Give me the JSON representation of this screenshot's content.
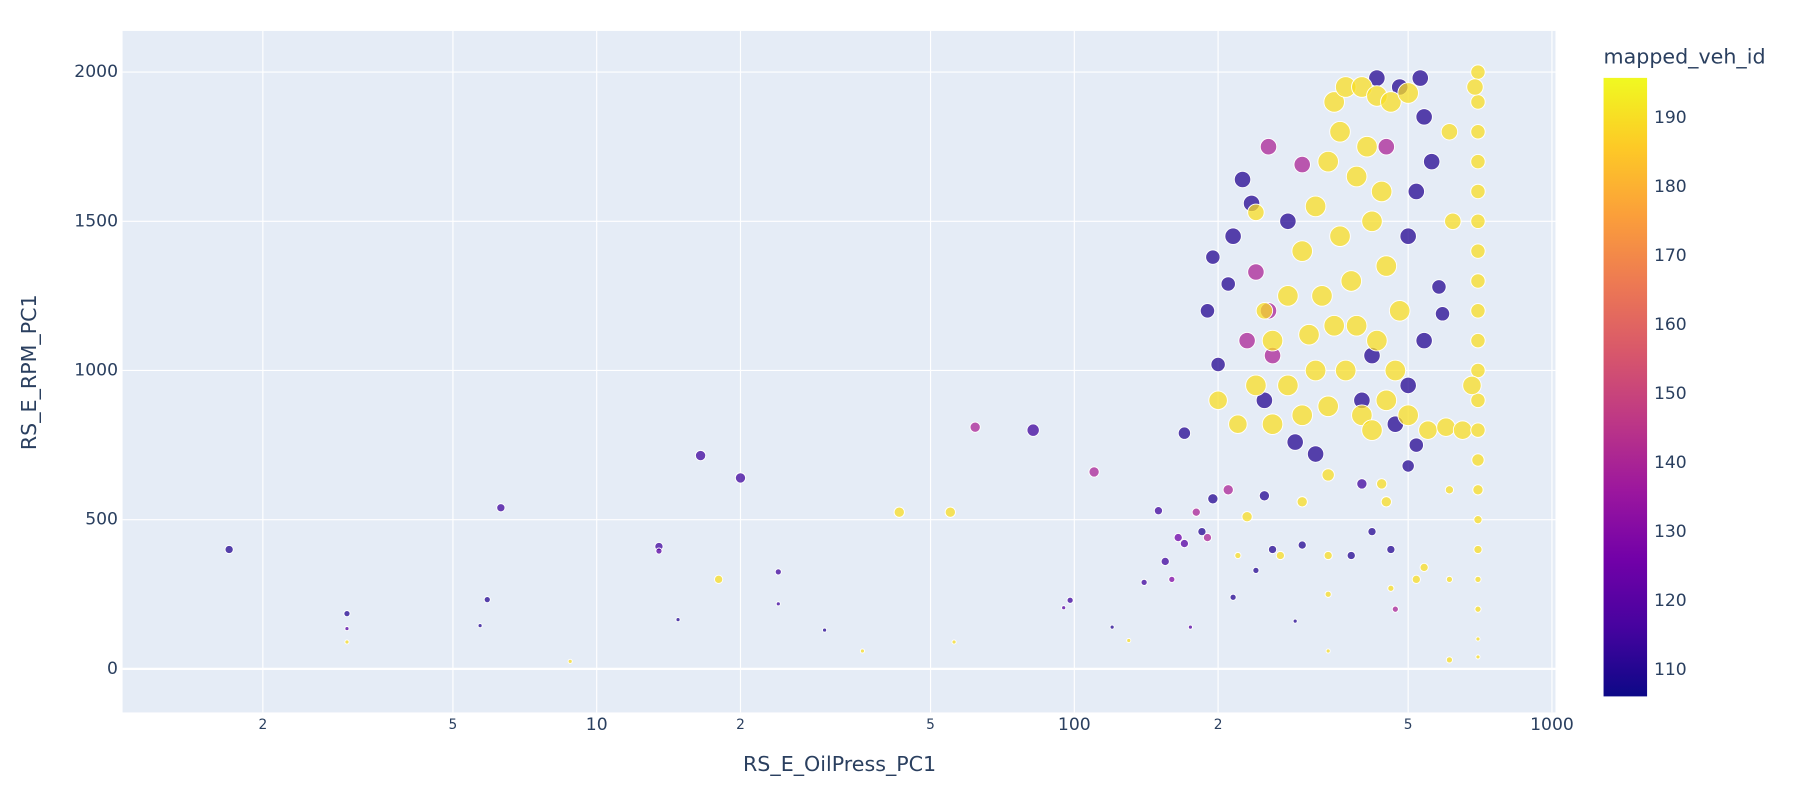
{
  "chart_data": {
    "type": "scatter",
    "x_label": "RS_E_OilPress_PC1",
    "y_label": "RS_E_RPM_PC1",
    "colorbar_title": "mapped_veh_id",
    "x_log": true,
    "grid": true,
    "xlim": [
      1.017,
      1017
    ],
    "ylim": [
      -146,
      2138
    ],
    "xticks": [
      2,
      5,
      10,
      {
        "value": 20,
        "label": "2"
      },
      {
        "value": 50,
        "label": "5"
      },
      100,
      {
        "value": 200,
        "label": "2"
      },
      {
        "value": 500,
        "label": "5"
      },
      1000
    ],
    "yticks": [
      0,
      500,
      1000,
      1500,
      2000
    ],
    "clim": [
      106.2,
      195.8
    ],
    "cticks": [
      110,
      120,
      130,
      140,
      150,
      160,
      170,
      180,
      190
    ],
    "colorscale": [
      "#0d0887",
      "#46039f",
      "#7201a8",
      "#9c179e",
      "#bd3786",
      "#d8576b",
      "#ed7953",
      "#fb9f3a",
      "#fdca26",
      "#f0f921"
    ],
    "points": [
      [
        1.7,
        400,
        4,
        110
      ],
      [
        3,
        185,
        3,
        110
      ],
      [
        3,
        135,
        2,
        120
      ],
      [
        3,
        90,
        2,
        190
      ],
      [
        5.7,
        145,
        2,
        110
      ],
      [
        5.9,
        232,
        3,
        110
      ],
      [
        6.3,
        540,
        4,
        115
      ],
      [
        8.8,
        25,
        2,
        190
      ],
      [
        13.5,
        410,
        4,
        115
      ],
      [
        13.5,
        395,
        3,
        120
      ],
      [
        14.8,
        165,
        2,
        110
      ],
      [
        16.5,
        715,
        5,
        115
      ],
      [
        18,
        300,
        4,
        190
      ],
      [
        20,
        640,
        5,
        115
      ],
      [
        24,
        325,
        3,
        115
      ],
      [
        24,
        218,
        2,
        115
      ],
      [
        30,
        130,
        2,
        110
      ],
      [
        36,
        60,
        2,
        190
      ],
      [
        43,
        525,
        5,
        190
      ],
      [
        55,
        525,
        5,
        190
      ],
      [
        56,
        90,
        2,
        190
      ],
      [
        62,
        810,
        5,
        140
      ],
      [
        82,
        800,
        6,
        115
      ],
      [
        95,
        205,
        2,
        120
      ],
      [
        98,
        230,
        3,
        115
      ],
      [
        110,
        660,
        5,
        140
      ],
      [
        120,
        140,
        2,
        110
      ],
      [
        130,
        95,
        2,
        190
      ],
      [
        140,
        290,
        3,
        115
      ],
      [
        150,
        530,
        4,
        115
      ],
      [
        155,
        360,
        4,
        115
      ],
      [
        160,
        300,
        3,
        130
      ],
      [
        165,
        440,
        4,
        125
      ],
      [
        170,
        420,
        4,
        120
      ],
      [
        175,
        140,
        2,
        120
      ],
      [
        180,
        525,
        4,
        140
      ],
      [
        185,
        460,
        4,
        110
      ],
      [
        190,
        440,
        4,
        140
      ],
      [
        195,
        570,
        5,
        110
      ],
      [
        210,
        600,
        5,
        140
      ],
      [
        215,
        240,
        3,
        110
      ],
      [
        220,
        380,
        3,
        190
      ],
      [
        230,
        510,
        5,
        190
      ],
      [
        240,
        330,
        3,
        110
      ],
      [
        250,
        580,
        5,
        110
      ],
      [
        260,
        400,
        4,
        110
      ],
      [
        270,
        380,
        4,
        190
      ],
      [
        290,
        160,
        2,
        110
      ],
      [
        300,
        560,
        5,
        190
      ],
      [
        300,
        415,
        4,
        110
      ],
      [
        340,
        650,
        6,
        190
      ],
      [
        340,
        380,
        4,
        190
      ],
      [
        340,
        250,
        3,
        190
      ],
      [
        340,
        60,
        2,
        190
      ],
      [
        380,
        380,
        4,
        110
      ],
      [
        400,
        620,
        5,
        115
      ],
      [
        420,
        460,
        4,
        110
      ],
      [
        440,
        620,
        5,
        190
      ],
      [
        450,
        560,
        5,
        190
      ],
      [
        460,
        400,
        4,
        110
      ],
      [
        460,
        270,
        3,
        190
      ],
      [
        470,
        200,
        3,
        140
      ],
      [
        520,
        300,
        4,
        190
      ],
      [
        540,
        340,
        4,
        190
      ],
      [
        610,
        30,
        3,
        190
      ],
      [
        610,
        300,
        3,
        190
      ],
      [
        610,
        600,
        4,
        190
      ],
      [
        170,
        790,
        6,
        110
      ],
      [
        190,
        1200,
        7,
        110
      ],
      [
        195,
        1380,
        7,
        110
      ],
      [
        200,
        1020,
        7,
        110
      ],
      [
        210,
        1290,
        7,
        110
      ],
      [
        215,
        1450,
        8,
        110
      ],
      [
        225,
        1640,
        8,
        110
      ],
      [
        235,
        1560,
        8,
        110
      ],
      [
        240,
        1330,
        8,
        140
      ],
      [
        255,
        1750,
        8,
        140
      ],
      [
        255,
        1200,
        8,
        140
      ],
      [
        280,
        1500,
        8,
        110
      ],
      [
        300,
        1690,
        8,
        140
      ],
      [
        250,
        900,
        8,
        110
      ],
      [
        230,
        1100,
        8,
        140
      ],
      [
        260,
        1050,
        8,
        140
      ],
      [
        290,
        760,
        8,
        110
      ],
      [
        320,
        720,
        8,
        110
      ],
      [
        500,
        1450,
        8,
        110
      ],
      [
        520,
        1600,
        8,
        110
      ],
      [
        540,
        1850,
        8,
        110
      ],
      [
        560,
        1700,
        8,
        110
      ],
      [
        580,
        1280,
        7,
        110
      ],
      [
        590,
        1190,
        7,
        110
      ],
      [
        540,
        1100,
        8,
        110
      ],
      [
        500,
        950,
        8,
        110
      ],
      [
        480,
        1950,
        8,
        110
      ],
      [
        470,
        820,
        8,
        110
      ],
      [
        520,
        750,
        7,
        110
      ],
      [
        500,
        680,
        6,
        110
      ],
      [
        430,
        1980,
        8,
        110
      ],
      [
        450,
        1750,
        8,
        140
      ],
      [
        420,
        1050,
        8,
        110
      ],
      [
        400,
        900,
        8,
        110
      ],
      [
        530,
        1980,
        8,
        110
      ],
      [
        200,
        900,
        9,
        190
      ],
      [
        220,
        820,
        9,
        190
      ],
      [
        240,
        950,
        10,
        190
      ],
      [
        260,
        1100,
        10,
        190
      ],
      [
        280,
        1250,
        10,
        190
      ],
      [
        300,
        1400,
        10,
        190
      ],
      [
        320,
        1550,
        10,
        190
      ],
      [
        340,
        1700,
        10,
        190
      ],
      [
        350,
        1900,
        10,
        190
      ],
      [
        370,
        1950,
        10,
        190
      ],
      [
        400,
        1950,
        10,
        190
      ],
      [
        430,
        1920,
        10,
        190
      ],
      [
        460,
        1900,
        10,
        190
      ],
      [
        500,
        1930,
        10,
        190
      ],
      [
        360,
        1800,
        10,
        190
      ],
      [
        390,
        1650,
        10,
        190
      ],
      [
        420,
        1500,
        10,
        190
      ],
      [
        450,
        1350,
        10,
        190
      ],
      [
        480,
        1200,
        10,
        190
      ],
      [
        380,
        1300,
        10,
        190
      ],
      [
        350,
        1150,
        10,
        190
      ],
      [
        320,
        1000,
        10,
        190
      ],
      [
        300,
        850,
        10,
        190
      ],
      [
        400,
        850,
        10,
        190
      ],
      [
        450,
        900,
        10,
        190
      ],
      [
        500,
        850,
        10,
        190
      ],
      [
        550,
        800,
        9,
        190
      ],
      [
        600,
        810,
        9,
        190
      ],
      [
        650,
        800,
        9,
        190
      ],
      [
        360,
        1450,
        10,
        190
      ],
      [
        410,
        1750,
        10,
        190
      ],
      [
        440,
        1600,
        10,
        190
      ],
      [
        330,
        1250,
        10,
        190
      ],
      [
        280,
        950,
        10,
        190
      ],
      [
        260,
        820,
        10,
        190
      ],
      [
        370,
        1000,
        10,
        190
      ],
      [
        430,
        1100,
        10,
        190
      ],
      [
        470,
        1000,
        10,
        190
      ],
      [
        390,
        1150,
        10,
        190
      ],
      [
        310,
        1120,
        10,
        190
      ],
      [
        340,
        880,
        10,
        190
      ],
      [
        420,
        800,
        10,
        190
      ],
      [
        250,
        1200,
        8,
        190
      ],
      [
        620,
        1500,
        8,
        190
      ],
      [
        610,
        1800,
        8,
        190
      ],
      [
        240,
        1530,
        8,
        190
      ],
      [
        700,
        2000,
        7,
        190
      ],
      [
        700,
        1900,
        7,
        190
      ],
      [
        700,
        1800,
        7,
        190
      ],
      [
        700,
        1700,
        7,
        190
      ],
      [
        700,
        1600,
        7,
        190
      ],
      [
        700,
        1500,
        7,
        190
      ],
      [
        700,
        1400,
        7,
        190
      ],
      [
        700,
        1300,
        7,
        190
      ],
      [
        700,
        1200,
        7,
        190
      ],
      [
        700,
        1100,
        7,
        190
      ],
      [
        700,
        1000,
        7,
        190
      ],
      [
        700,
        900,
        7,
        190
      ],
      [
        700,
        800,
        7,
        190
      ],
      [
        700,
        700,
        6,
        190
      ],
      [
        700,
        600,
        5,
        190
      ],
      [
        700,
        500,
        4,
        190
      ],
      [
        700,
        400,
        4,
        190
      ],
      [
        700,
        300,
        3,
        190
      ],
      [
        700,
        200,
        3,
        190
      ],
      [
        700,
        100,
        2,
        190
      ],
      [
        700,
        40,
        2,
        190
      ],
      [
        680,
        950,
        9,
        190
      ],
      [
        690,
        1950,
        8,
        190
      ]
    ]
  }
}
